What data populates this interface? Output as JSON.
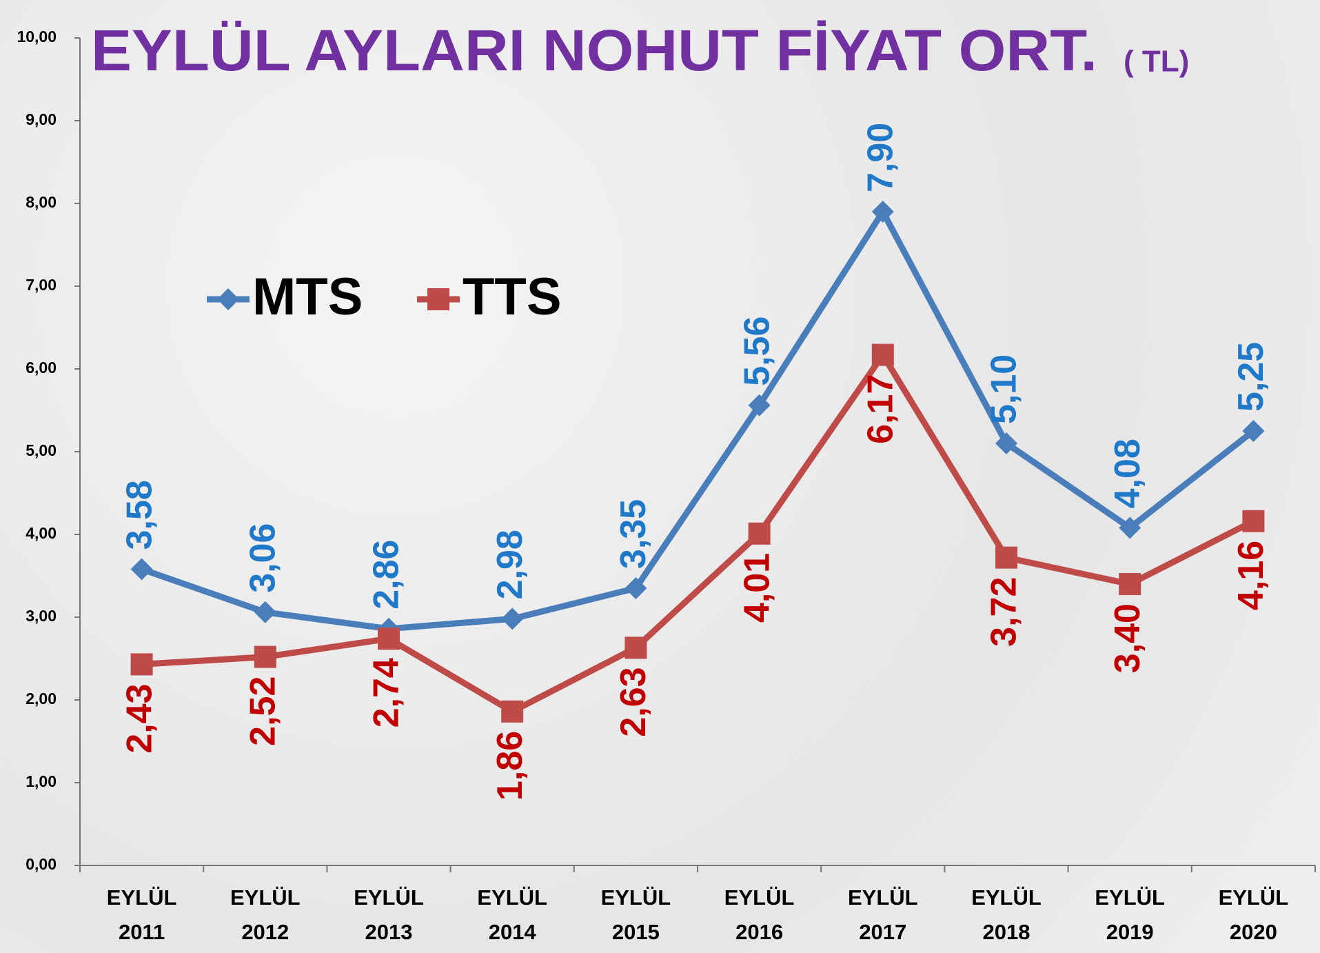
{
  "chart_data": {
    "type": "line",
    "title": "EYLÜL AYLARI NOHUT FİYAT ORT.",
    "subtitle": "( TL)",
    "categories": [
      "EYLÜL 2011",
      "EYLÜL 2012",
      "EYLÜL 2013",
      "EYLÜL 2014",
      "EYLÜL 2015",
      "EYLÜL 2016",
      "EYLÜL 2017",
      "EYLÜL 2018",
      "EYLÜL 2019",
      "EYLÜL 2020"
    ],
    "series": [
      {
        "name": "MTS",
        "color": "#4a7ebb",
        "label_color": "#1f78c8",
        "marker": "diamond",
        "values": [
          3.58,
          3.06,
          2.86,
          2.98,
          3.35,
          5.56,
          7.9,
          5.1,
          4.08,
          5.25
        ],
        "value_labels": [
          "3,58",
          "3,06",
          "2,86",
          "2,98",
          "3,35",
          "5,56",
          "7,90",
          "5,10",
          "4,08",
          "5,25"
        ]
      },
      {
        "name": "TTS",
        "color": "#be4b48",
        "label_color": "#c00000",
        "marker": "square",
        "values": [
          2.43,
          2.52,
          2.74,
          1.86,
          2.63,
          4.01,
          6.17,
          3.72,
          3.4,
          4.16
        ],
        "value_labels": [
          "2,43",
          "2,52",
          "2,74",
          "1,86",
          "2,63",
          "4,01",
          "6,17",
          "3,72",
          "3,40",
          "4,16"
        ]
      }
    ],
    "ylim": [
      0,
      10
    ],
    "yticks": [
      {
        "value": 0,
        "label": "0,00"
      },
      {
        "value": 1,
        "label": "1,00"
      },
      {
        "value": 2,
        "label": "2,00"
      },
      {
        "value": 3,
        "label": "3,00"
      },
      {
        "value": 4,
        "label": "4,00"
      },
      {
        "value": 5,
        "label": "5,00"
      },
      {
        "value": 6,
        "label": "6,00"
      },
      {
        "value": 7,
        "label": "7,00"
      },
      {
        "value": 8,
        "label": "8,00"
      },
      {
        "value": 9,
        "label": "9,00"
      },
      {
        "value": 10,
        "label": "10,00"
      }
    ],
    "grid": false,
    "legend": "top-left"
  }
}
